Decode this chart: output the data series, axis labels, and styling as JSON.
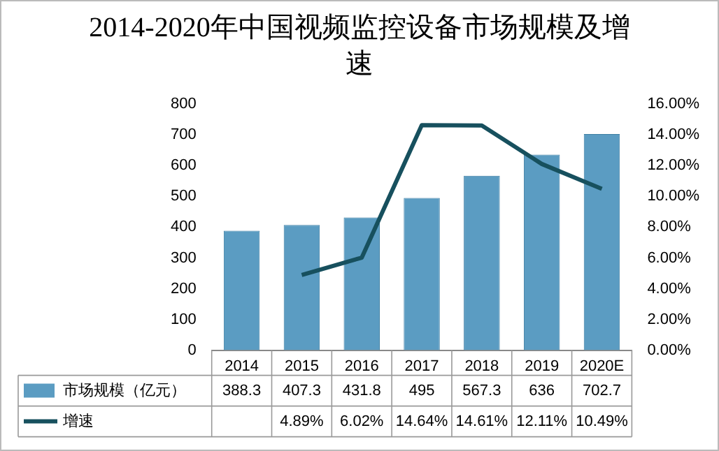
{
  "chart_data": {
    "type": "bar",
    "title": "2014-2020年中国视频监控设备市场规模及增速",
    "categories": [
      "2014",
      "2015",
      "2016",
      "2017",
      "2018",
      "2019",
      "2020E"
    ],
    "series": [
      {
        "name": "市场规模（亿元）",
        "color": "#5b9cc2",
        "values": [
          388.3,
          407.3,
          431.8,
          495,
          567.3,
          636,
          702.7
        ],
        "value_labels": [
          "388.3",
          "407.3",
          "431.8",
          "495",
          "567.3",
          "636",
          "702.7"
        ]
      },
      {
        "name": "增速",
        "type": "line",
        "axis": "y2",
        "color": "#17505e",
        "values": [
          null,
          4.89,
          6.02,
          14.64,
          14.61,
          12.11,
          10.49
        ],
        "value_labels": [
          null,
          "4.89%",
          "6.02%",
          "14.64%",
          "14.61%",
          "12.11%",
          "10.49%"
        ]
      }
    ],
    "ylim": [
      0,
      800
    ],
    "yticks": [
      0,
      100,
      200,
      300,
      400,
      500,
      600,
      700,
      800
    ],
    "y2lim": [
      0,
      16
    ],
    "y2ticks": [
      {
        "value": 0,
        "label": "0.00%"
      },
      {
        "value": 2,
        "label": "2.00%"
      },
      {
        "value": 4,
        "label": "4.00%"
      },
      {
        "value": 6,
        "label": "6.00%"
      },
      {
        "value": 8,
        "label": "8.00%"
      },
      {
        "value": 10,
        "label": "10.00%"
      },
      {
        "value": 12,
        "label": "12.00%"
      },
      {
        "value": 14,
        "label": "14.00%"
      },
      {
        "value": 16,
        "label": "16.00%"
      }
    ],
    "grid": false,
    "legend": "bottom",
    "marker": "none",
    "line_style": "solid"
  }
}
